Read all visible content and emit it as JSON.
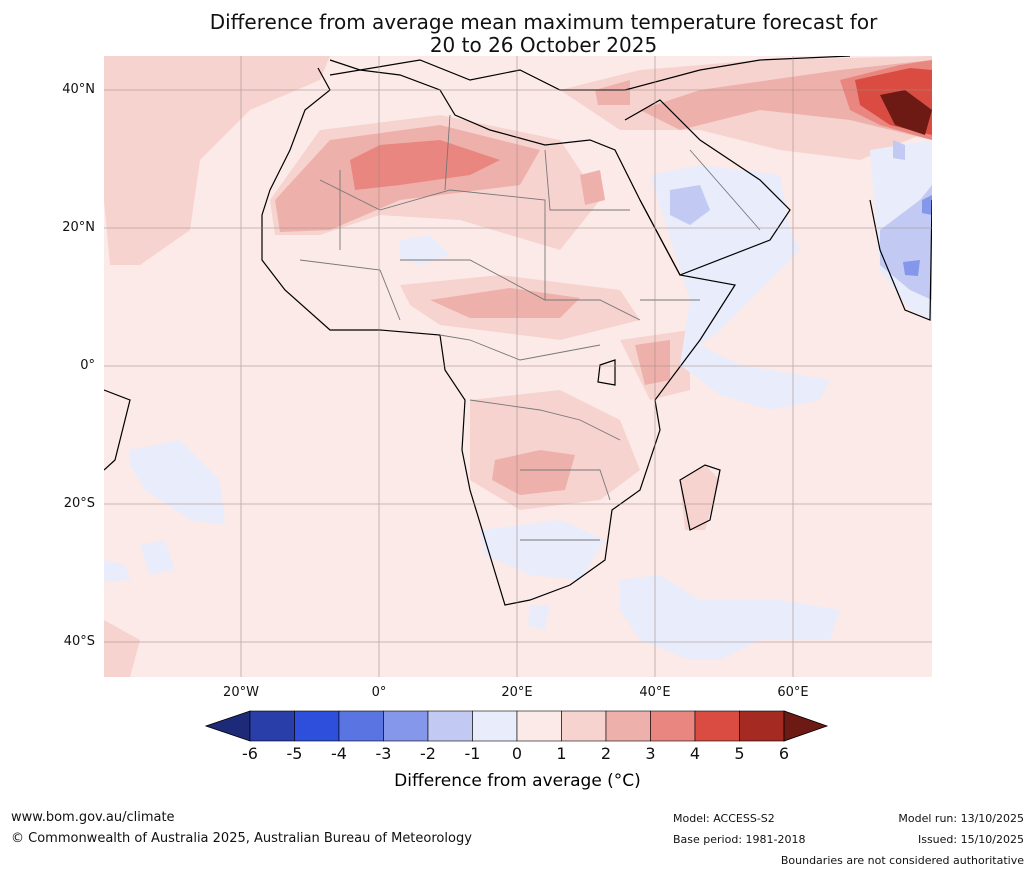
{
  "title": {
    "line1": "Difference from average mean maximum temperature forecast for",
    "line2": "20 to 26 October 2025"
  },
  "axes": {
    "lat_labels": [
      "40°N",
      "20°N",
      "0°",
      "20°S",
      "40°S"
    ],
    "lon_labels": [
      "20°W",
      "0°",
      "20°E",
      "40°E",
      "60°E"
    ]
  },
  "colorbar": {
    "label": "Difference from average (°C)",
    "ticks": [
      "-6",
      "-5",
      "-4",
      "-3",
      "-2",
      "-1",
      "0",
      "1",
      "2",
      "3",
      "4",
      "5",
      "6"
    ],
    "colors": [
      "#1c2a78",
      "#2a3eaa",
      "#2e4fdc",
      "#5a74e2",
      "#8497ea",
      "#c2caf3",
      "#e9ecfa",
      "#fbeae7",
      "#f6d3cf",
      "#eeb0aa",
      "#e8867f",
      "#da4c41",
      "#a52a22",
      "#6e1a14"
    ]
  },
  "footer": {
    "website": "www.bom.gov.au/climate",
    "copyright": "© Commonwealth of Australia 2025, Australian Bureau of Meteorology",
    "model": "Model: ACCESS-S2",
    "base_period": "Base period: 1981-2018",
    "model_run": "Model run: 13/10/2025",
    "issued": "Issued: 15/10/2025",
    "disclaimer": "Boundaries are not considered authoritative"
  }
}
